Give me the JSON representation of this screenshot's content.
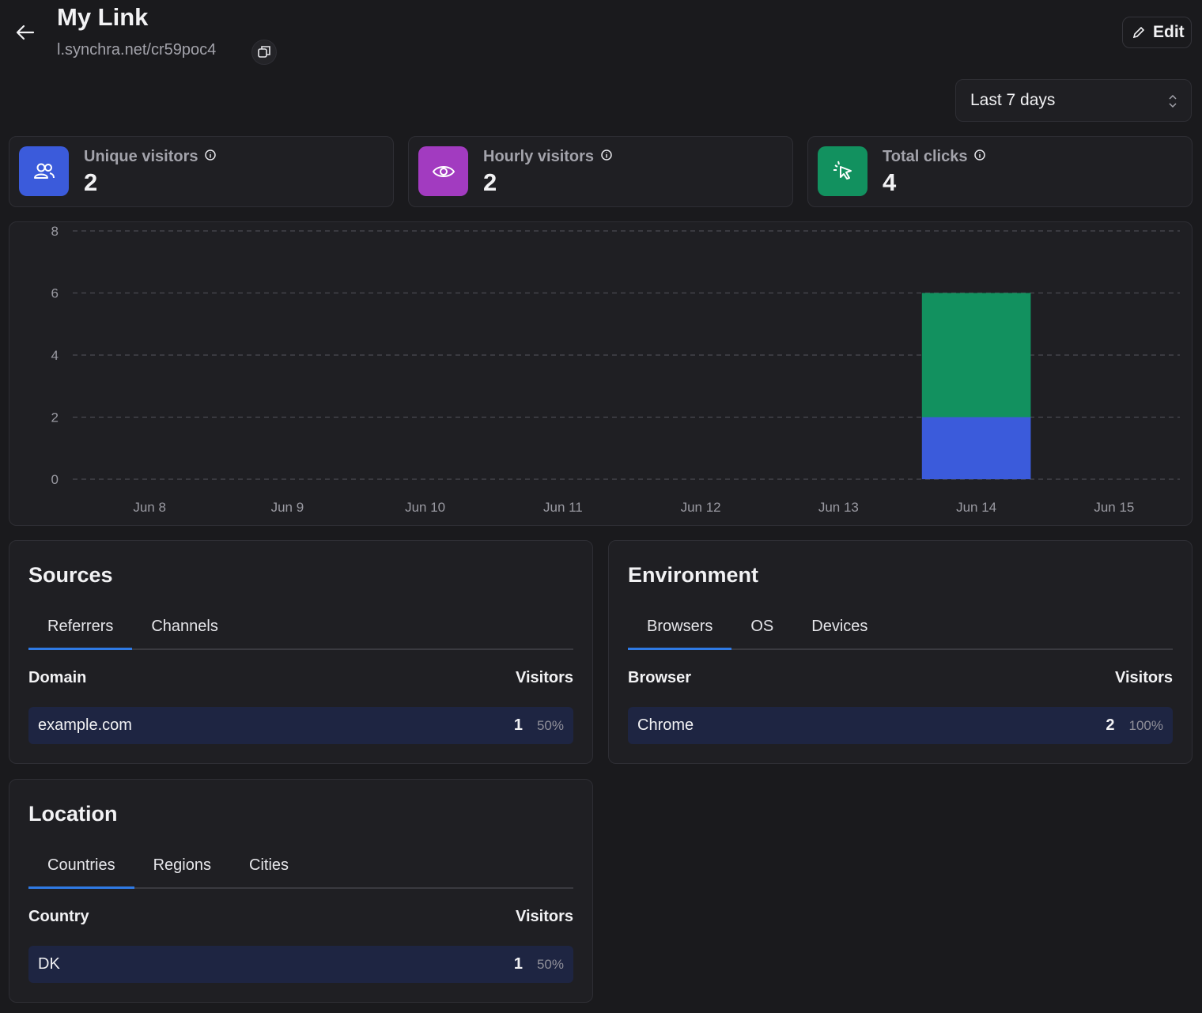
{
  "header": {
    "title": "My Link",
    "url": "l.synchra.net/cr59poc4",
    "edit": "Edit",
    "range": "Last 7 days"
  },
  "stats": [
    {
      "label": "Unique visitors",
      "value": 2
    },
    {
      "label": "Hourly visitors",
      "value": 2
    },
    {
      "label": "Total clicks",
      "value": 4
    }
  ],
  "chart_data": {
    "type": "bar",
    "stacked": true,
    "categories": [
      "Jun 8",
      "Jun 9",
      "Jun 10",
      "Jun 11",
      "Jun 12",
      "Jun 13",
      "Jun 14",
      "Jun 15"
    ],
    "series": [
      {
        "color": "#3b5bdb",
        "values": [
          0,
          0,
          0,
          0,
          0,
          0,
          2,
          0
        ]
      },
      {
        "color": "#12915f",
        "values": [
          0,
          0,
          0,
          0,
          0,
          0,
          4,
          0
        ]
      }
    ],
    "ylim": [
      0,
      8
    ],
    "yticks": [
      0,
      2,
      4,
      6,
      8
    ],
    "grid": true
  },
  "panels": [
    {
      "title": "Sources",
      "tabs": [
        "Referrers",
        "Channels"
      ],
      "columns": [
        "Domain",
        "Visitors"
      ],
      "rows": [
        {
          "label": "example.com",
          "value": 1,
          "percent": "50%"
        }
      ]
    },
    {
      "title": "Environment",
      "tabs": [
        "Browsers",
        "OS",
        "Devices"
      ],
      "columns": [
        "Browser",
        "Visitors"
      ],
      "rows": [
        {
          "label": "Chrome",
          "value": 2,
          "percent": "100%"
        }
      ]
    },
    {
      "title": "Location",
      "tabs": [
        "Countries",
        "Regions",
        "Cities"
      ],
      "columns": [
        "Country",
        "Visitors"
      ],
      "rows": [
        {
          "label": "DK",
          "value": 1,
          "percent": "50%"
        }
      ]
    }
  ]
}
